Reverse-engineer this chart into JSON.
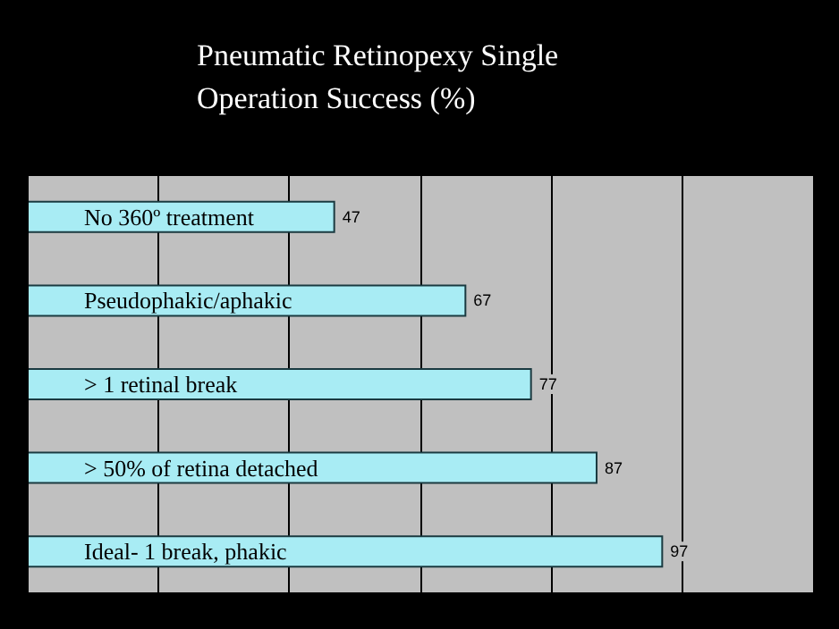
{
  "chart_data": {
    "type": "bar",
    "orientation": "horizontal",
    "title": "Pneumatic Retinopexy Single\nOperation Success (%)",
    "categories": [
      "No 360º treatment",
      "Pseudophakic/aphakic",
      "> 1 retinal break",
      "> 50% of retina detached",
      "Ideal- 1 break, phakic"
    ],
    "values": [
      47,
      67,
      77,
      87,
      97
    ],
    "color": "#a8ecf4",
    "xlim": [
      0,
      120
    ],
    "xticks": [
      {
        "value": 0,
        "label": null
      },
      {
        "value": 20,
        "label": null
      },
      {
        "value": 40,
        "label": null
      },
      {
        "value": 60,
        "label": null
      },
      {
        "value": 80,
        "label": null
      },
      {
        "value": 100,
        "label": null
      }
    ],
    "grid": "x",
    "tick_labels": "y",
    "data_labels": true
  }
}
